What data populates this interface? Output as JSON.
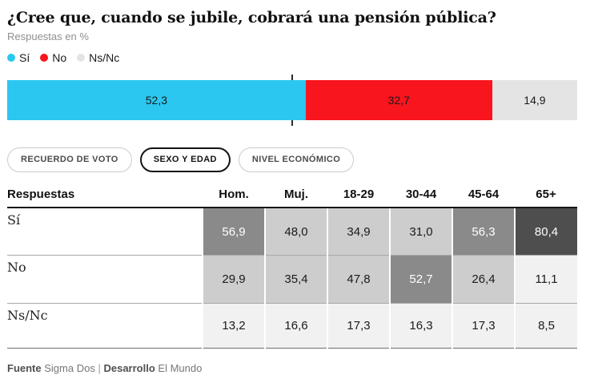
{
  "page": {
    "title": "¿Cree que, cuando se jubile, cobrará una pensión pública?",
    "subtitle": "Respuestas en %"
  },
  "legend": {
    "items": [
      {
        "label": "Sí",
        "color": "#2bc7f0"
      },
      {
        "label": "No",
        "color": "#f8151e"
      },
      {
        "label": "Ns/Nc",
        "color": "#e4e4e4"
      }
    ]
  },
  "bar": {
    "tick_percent": 50,
    "segments": [
      {
        "label": "Sí",
        "display": "52,3",
        "value": 52.3,
        "color": "#2bc7f0",
        "text_color": "#1a1a1a"
      },
      {
        "label": "No",
        "display": "32,7",
        "value": 32.7,
        "color": "#f8151e",
        "text_color": "#1a1a1a"
      },
      {
        "label": "Ns/Nc",
        "display": "14,9",
        "value": 14.9,
        "color": "#e4e4e4",
        "text_color": "#1a1a1a"
      }
    ]
  },
  "tabs": {
    "items": [
      {
        "label": "RECUERDO DE VOTO",
        "active": false
      },
      {
        "label": "SEXO Y EDAD",
        "active": true
      },
      {
        "label": "NIVEL ECONÓMICO",
        "active": false
      }
    ]
  },
  "table": {
    "label_header": "Respuestas",
    "columns": [
      "Hom.",
      "Muj.",
      "18-29",
      "30-44",
      "45-64",
      "65+"
    ],
    "rows": [
      {
        "label": "Sí",
        "cells": [
          {
            "value": "56,9",
            "bg": "#8a8a8a",
            "fg": "#ffffff"
          },
          {
            "value": "48,0",
            "bg": "#cdcdcd",
            "fg": "#1a1a1a"
          },
          {
            "value": "34,9",
            "bg": "#cdcdcd",
            "fg": "#1a1a1a"
          },
          {
            "value": "31,0",
            "bg": "#cdcdcd",
            "fg": "#1a1a1a"
          },
          {
            "value": "56,3",
            "bg": "#8a8a8a",
            "fg": "#ffffff"
          },
          {
            "value": "80,4",
            "bg": "#4e4e4e",
            "fg": "#ffffff"
          }
        ]
      },
      {
        "label": "No",
        "cells": [
          {
            "value": "29,9",
            "bg": "#cdcdcd",
            "fg": "#1a1a1a"
          },
          {
            "value": "35,4",
            "bg": "#cdcdcd",
            "fg": "#1a1a1a"
          },
          {
            "value": "47,8",
            "bg": "#cdcdcd",
            "fg": "#1a1a1a"
          },
          {
            "value": "52,7",
            "bg": "#8a8a8a",
            "fg": "#ffffff"
          },
          {
            "value": "26,4",
            "bg": "#cdcdcd",
            "fg": "#1a1a1a"
          },
          {
            "value": "11,1",
            "bg": "#f1f1f1",
            "fg": "#1a1a1a"
          }
        ]
      },
      {
        "label": "Ns/Nc",
        "cells": [
          {
            "value": "13,2",
            "bg": "#f1f1f1",
            "fg": "#1a1a1a"
          },
          {
            "value": "16,6",
            "bg": "#f1f1f1",
            "fg": "#1a1a1a"
          },
          {
            "value": "17,3",
            "bg": "#f1f1f1",
            "fg": "#1a1a1a"
          },
          {
            "value": "16,3",
            "bg": "#f1f1f1",
            "fg": "#1a1a1a"
          },
          {
            "value": "17,3",
            "bg": "#f1f1f1",
            "fg": "#1a1a1a"
          },
          {
            "value": "8,5",
            "bg": "#f1f1f1",
            "fg": "#1a1a1a"
          }
        ]
      }
    ]
  },
  "footer": {
    "source_label": "Fuente",
    "source": "Sigma Dos",
    "separator": "|",
    "dev_label": "Desarrollo",
    "dev": "El Mundo"
  },
  "chart_data": [
    {
      "type": "bar",
      "subtype": "horizontal-stacked",
      "title": "¿Cree que, cuando se jubile, cobrará una pensión pública?",
      "subtitle": "Respuestas en %",
      "categories": [
        "Sí",
        "No",
        "Ns/Nc"
      ],
      "values": [
        52.3,
        32.7,
        14.9
      ],
      "colors": [
        "#2bc7f0",
        "#f8151e",
        "#e4e4e4"
      ],
      "xlim": [
        0,
        100
      ],
      "annotations": [
        "50% midpoint tick"
      ],
      "legend_position": "top"
    },
    {
      "type": "heatmap",
      "title": "Respuestas por sexo y edad (tab: SEXO Y EDAD)",
      "categories": [
        "Hom.",
        "Muj.",
        "18-29",
        "30-44",
        "45-64",
        "65+"
      ],
      "series": [
        {
          "name": "Sí",
          "values": [
            56.9,
            48.0,
            34.9,
            31.0,
            56.3,
            80.4
          ]
        },
        {
          "name": "No",
          "values": [
            29.9,
            35.4,
            47.8,
            52.7,
            26.4,
            11.1
          ]
        },
        {
          "name": "Ns/Nc",
          "values": [
            13.2,
            16.6,
            17.3,
            16.3,
            17.3,
            8.5
          ]
        }
      ]
    }
  ]
}
